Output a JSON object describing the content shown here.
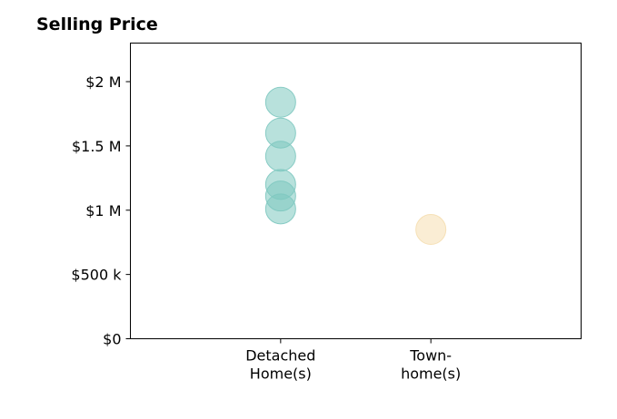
{
  "chart_data": {
    "type": "scatter",
    "title": "Selling Price",
    "xlabel": "",
    "ylabel": "",
    "categories": [
      [
        "Detached",
        "Home(s)"
      ],
      [
        "Town-",
        "home(s)"
      ]
    ],
    "y_ticks": [
      {
        "value": 0,
        "label": "$0"
      },
      {
        "value": 500000,
        "label": "$500 k"
      },
      {
        "value": 1000000,
        "label": "$1 M"
      },
      {
        "value": 1500000,
        "label": "$1.5 M"
      },
      {
        "value": 2000000,
        "label": "$2 M"
      }
    ],
    "ylim": [
      0,
      2300000
    ],
    "xlim": [
      -1,
      2
    ],
    "grid": false,
    "series": [
      {
        "category_index": 0,
        "color": "#7ec8c0",
        "values": [
          1840000,
          1600000,
          1420000,
          1200000,
          1110000,
          1010000
        ]
      },
      {
        "category_index": 1,
        "color": "#f5deb0",
        "values": [
          850000
        ]
      }
    ]
  }
}
